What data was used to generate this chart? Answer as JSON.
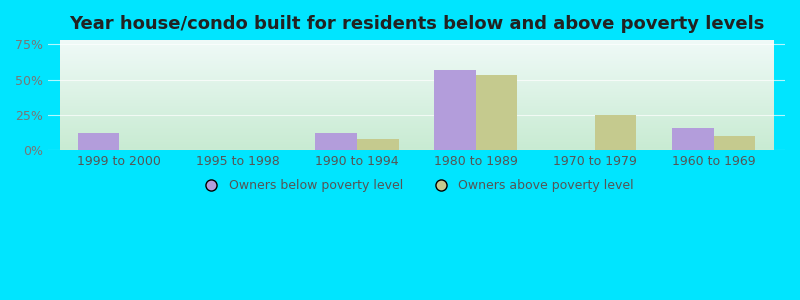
{
  "title": "Year house/condo built for residents below and above poverty levels",
  "categories": [
    "1999 to 2000",
    "1995 to 1998",
    "1990 to 1994",
    "1980 to 1989",
    "1970 to 1979",
    "1960 to 1969"
  ],
  "below_poverty": [
    12,
    0,
    12,
    57,
    0,
    16
  ],
  "above_poverty": [
    0,
    0,
    8,
    53,
    25,
    10
  ],
  "below_color": "#b39ddb",
  "above_color": "#c5ca8e",
  "background_color": "#00e5ff",
  "yticks": [
    0,
    25,
    50,
    75
  ],
  "ylim": [
    0,
    78
  ],
  "title_color": "#222222",
  "legend_below_label": "Owners below poverty level",
  "legend_above_label": "Owners above poverty level",
  "bar_width": 0.35,
  "title_fontsize": 13,
  "tick_fontsize": 9,
  "legend_fontsize": 9
}
